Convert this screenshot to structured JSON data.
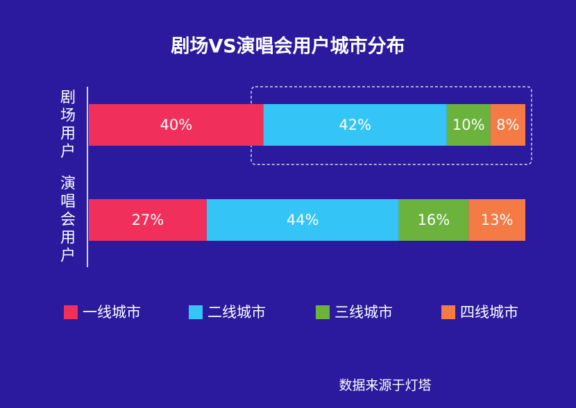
{
  "chart_data": {
    "type": "stacked-bar",
    "title": "剧场VS演唱会用户城市分布",
    "categories": [
      "剧场用户",
      "演唱会用户"
    ],
    "series": [
      {
        "name": "一线城市",
        "color": "#f0305a",
        "values": [
          40,
          27
        ],
        "value_labels": [
          "40%",
          "27%"
        ]
      },
      {
        "name": "二线城市",
        "color": "#35c4f6",
        "values": [
          42,
          44
        ],
        "value_labels": [
          "42%",
          "44%"
        ]
      },
      {
        "name": "三线城市",
        "color": "#6cb33e",
        "values": [
          10,
          16
        ],
        "value_labels": [
          "10%",
          "16%"
        ]
      },
      {
        "name": "四线城市",
        "color": "#f47b46",
        "values": [
          8,
          13
        ],
        "value_labels": [
          "8%",
          "13%"
        ]
      }
    ],
    "source": "数据来源于灯塔"
  }
}
